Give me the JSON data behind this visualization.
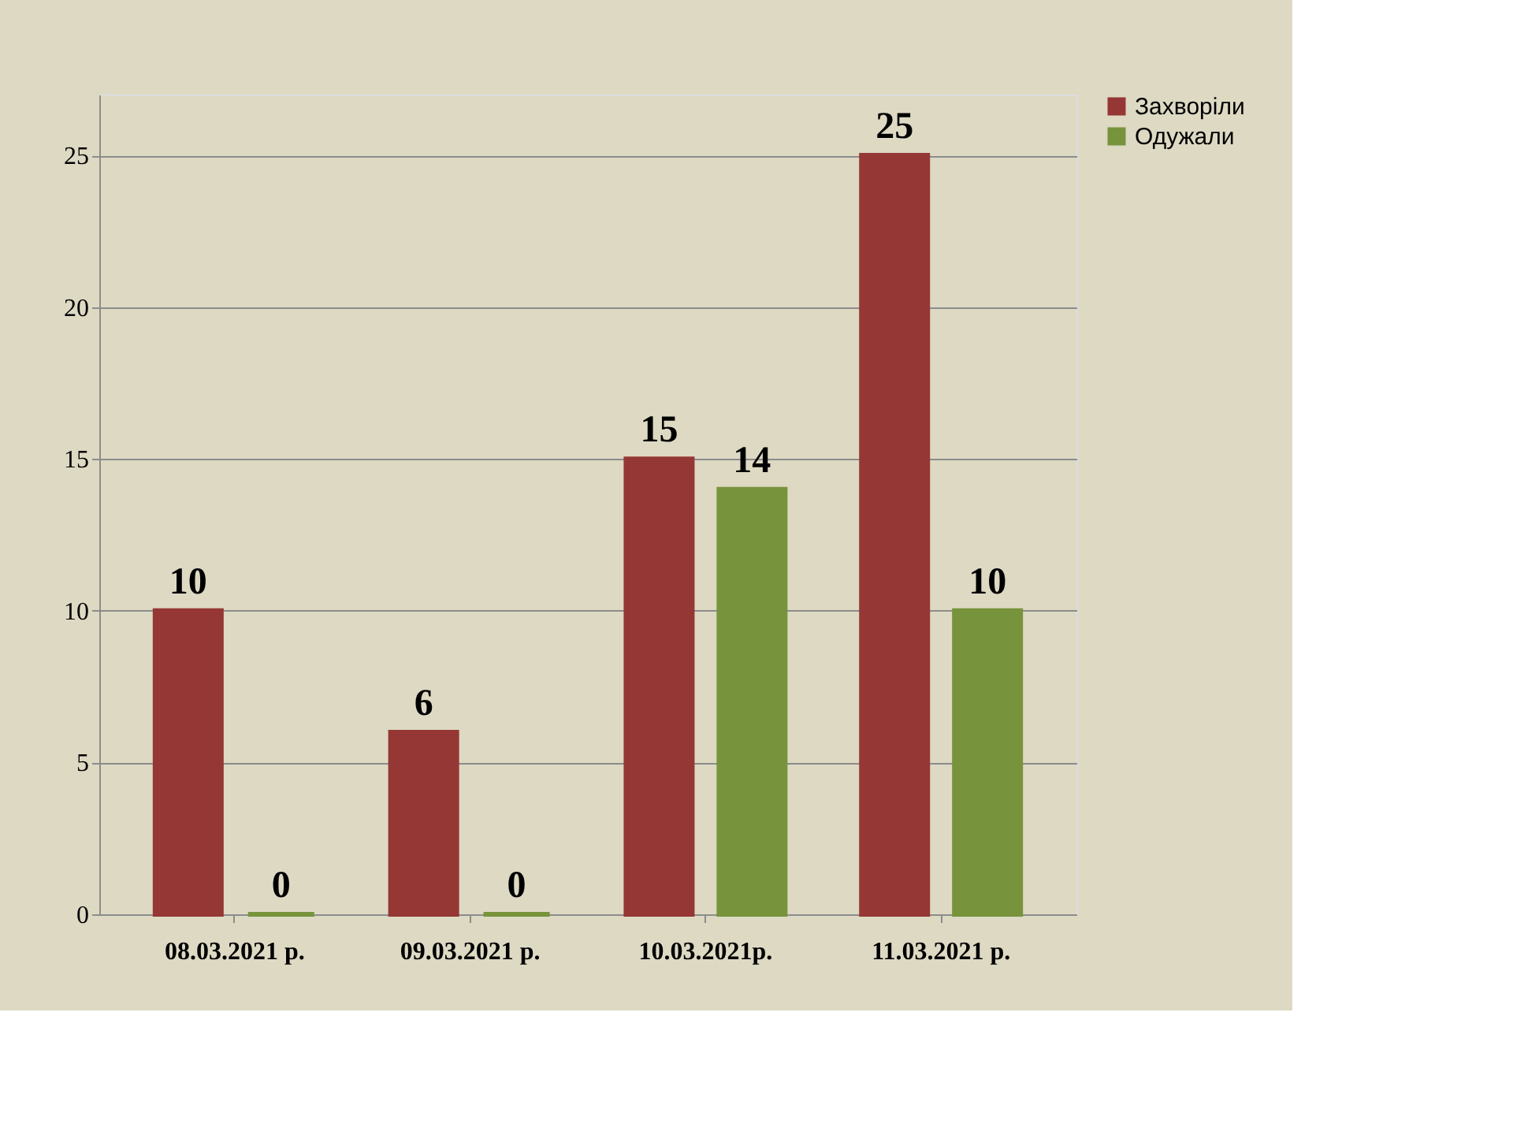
{
  "chart_data": {
    "type": "bar",
    "categories": [
      "08.03.2021 р.",
      "09.03.2021 р.",
      "10.03.2021р.",
      "11.03.2021 р."
    ],
    "series": [
      {
        "name": "Захворіли",
        "color": "#953735",
        "values": [
          10,
          6,
          15,
          25
        ]
      },
      {
        "name": "Одужали",
        "color": "#77933c",
        "values": [
          0,
          0,
          14,
          10
        ]
      }
    ],
    "ylim": [
      0,
      27
    ],
    "yticks": [
      0,
      5,
      10,
      15,
      20,
      25
    ],
    "grid": "y",
    "legend": "right",
    "data_labels": true
  }
}
